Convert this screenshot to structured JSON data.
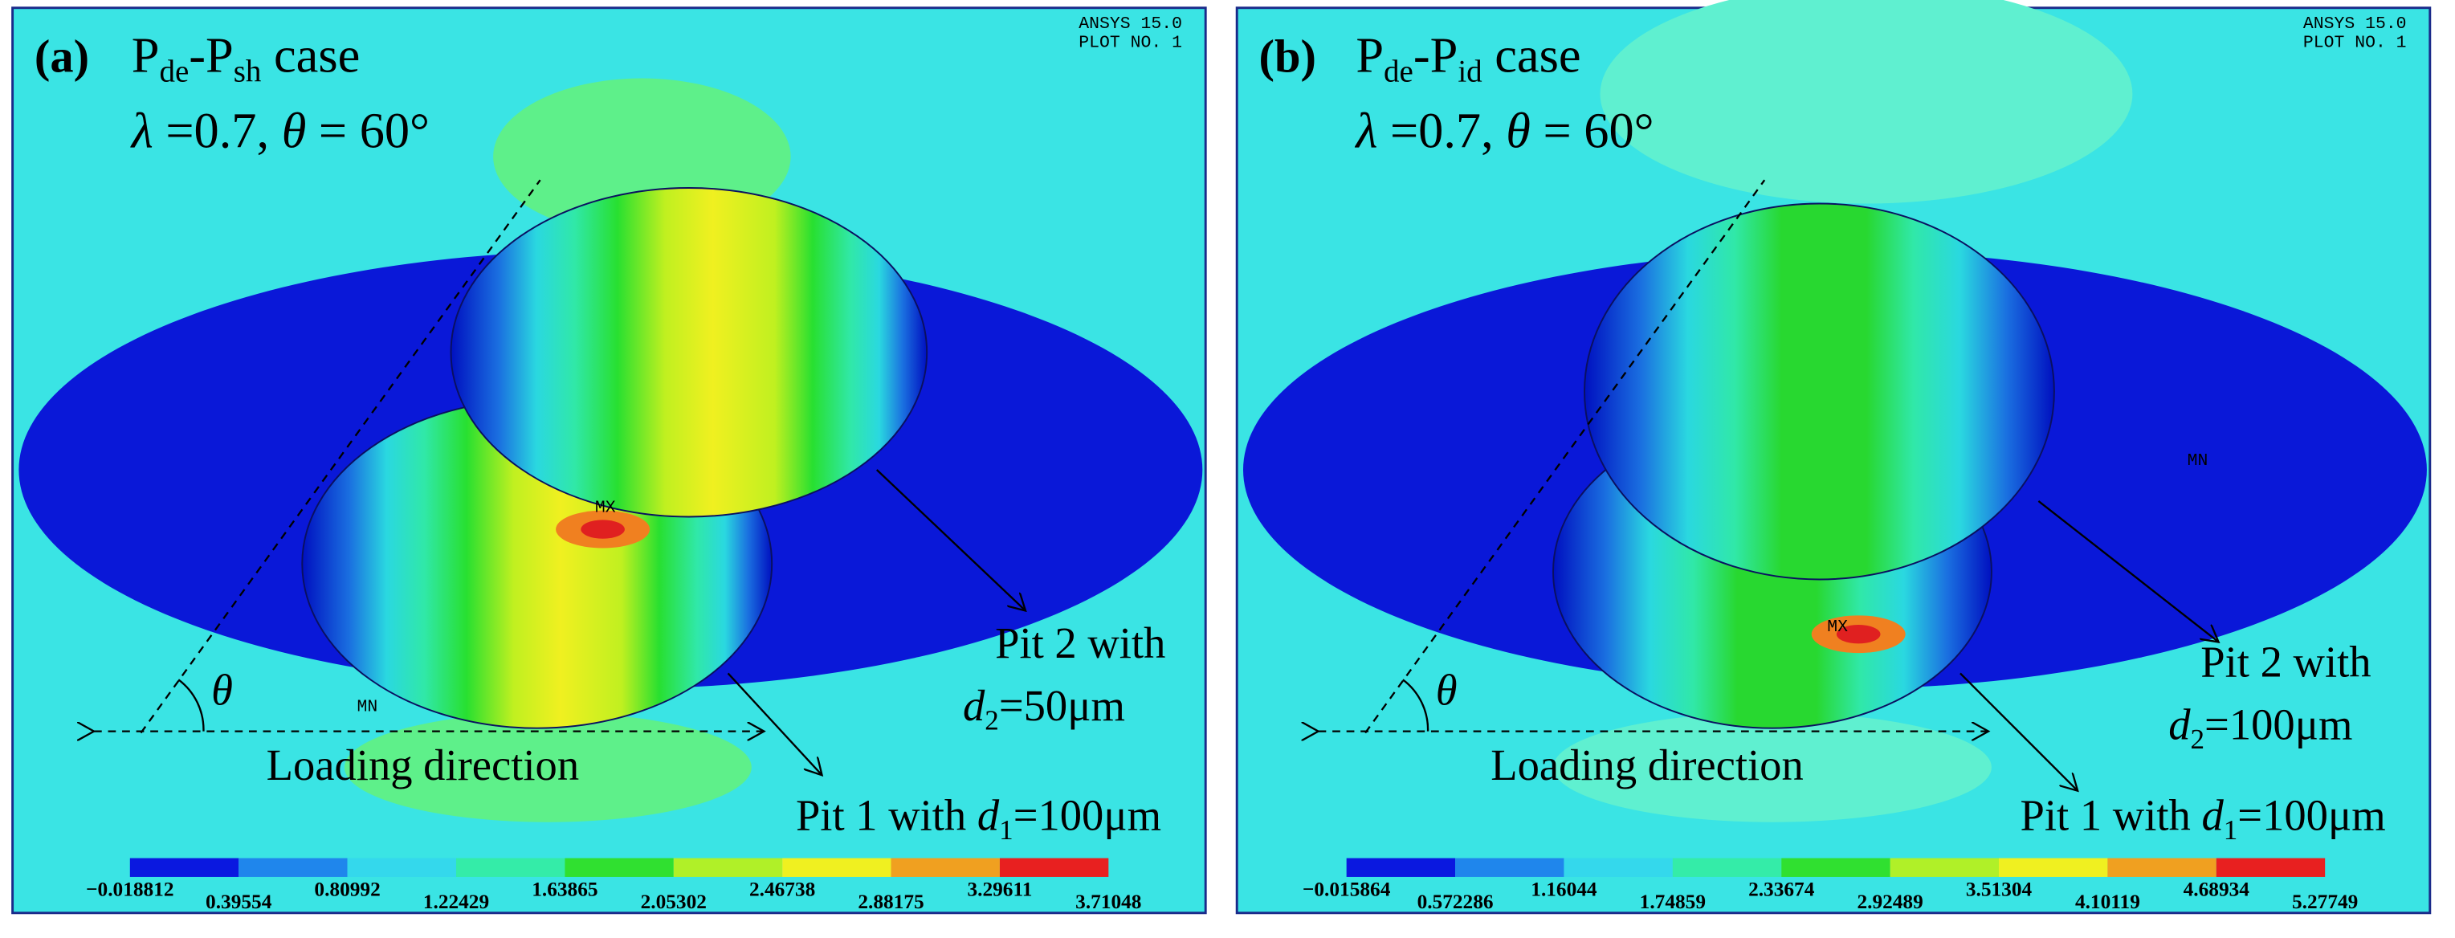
{
  "panels": [
    {
      "label": "(a)",
      "title": [
        "P",
        "de",
        "-P",
        "sh",
        " case"
      ],
      "params": [
        "λ",
        " =0.7, ",
        "θ",
        " = 60°"
      ],
      "ansys": [
        "ANSYS 15.0",
        "PLOT NO.   1"
      ],
      "mx": "MX",
      "mn": "MN",
      "theta": "θ",
      "loading": "Loading direction",
      "pit2": [
        "Pit 2 with",
        "d",
        "2",
        "=50μm"
      ],
      "pit1": [
        "Pit 1 with ",
        "d",
        "1",
        "=100μm"
      ],
      "colorbar": [
        "−0.018812",
        "0.39554",
        "0.80992",
        "1.22429",
        "1.63865",
        "2.05302",
        "2.46738",
        "2.88175",
        "3.29611",
        "3.71048"
      ]
    },
    {
      "label": "(b)",
      "title": [
        "P",
        "de",
        "-P",
        "id",
        " case"
      ],
      "params": [
        "λ",
        " =0.7, ",
        "θ",
        " = 60°"
      ],
      "ansys": [
        "ANSYS 15.0",
        "PLOT NO.   1"
      ],
      "mx": "MX",
      "mn": "MN",
      "theta": "θ",
      "loading": "Loading direction",
      "pit2": [
        "Pit 2 with",
        "d",
        "2",
        "=100μm"
      ],
      "pit1": [
        "Pit 1 with ",
        "d",
        "1",
        "=100μm"
      ],
      "colorbar": [
        "−0.015864",
        "0.572286",
        "1.16044",
        "1.74859",
        "2.33674",
        "2.92489",
        "3.51304",
        "4.10119",
        "4.68934",
        "5.27749"
      ]
    }
  ]
}
